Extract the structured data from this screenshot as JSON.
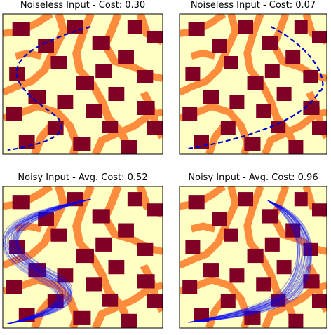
{
  "panels": [
    {
      "title": "Noiseless Input - Cost: 0.30"
    },
    {
      "title": "Noiseless Input - Cost: 0.07"
    },
    {
      "title": "Noisy Input - Avg. Cost: 0.52"
    },
    {
      "title": "Noisy Input - Avg. Cost: 0.96"
    }
  ]
}
